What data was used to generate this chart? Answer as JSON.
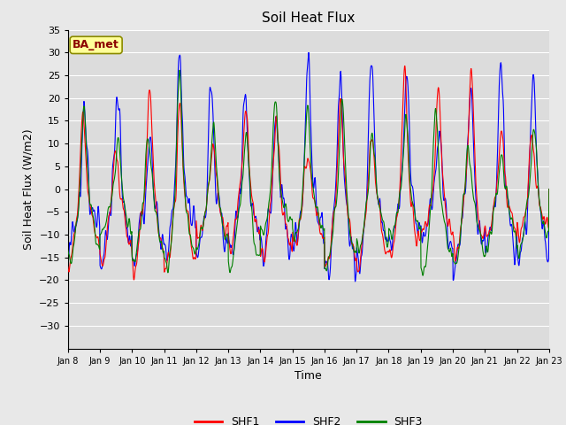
{
  "title": "Soil Heat Flux",
  "xlabel": "Time",
  "ylabel": "Soil Heat Flux (W/m2)",
  "ylim": [
    -35,
    35
  ],
  "yticks": [
    -30,
    -25,
    -20,
    -15,
    -10,
    -5,
    0,
    5,
    10,
    15,
    20,
    25,
    30,
    35
  ],
  "xtick_labels": [
    "Jan 8",
    "Jan 9",
    "Jan 10",
    "Jan 11",
    "Jan 12",
    "Jan 13",
    "Jan 14",
    "Jan 15",
    "Jan 16",
    "Jan 17",
    "Jan 18",
    "Jan 19",
    "Jan 20",
    "Jan 21",
    "Jan 22",
    "Jan 23"
  ],
  "line_colors": [
    "red",
    "blue",
    "green"
  ],
  "line_labels": [
    "SHF1",
    "SHF2",
    "SHF3"
  ],
  "legend_label": "BA_met",
  "legend_label_color": "#8B0000",
  "legend_box_facecolor": "#FFFF99",
  "legend_box_edgecolor": "#8B8B00",
  "fig_facecolor": "#E8E8E8",
  "plot_facecolor": "#DCDCDC",
  "grid_color": "white",
  "title_fontsize": 11,
  "axis_label_fontsize": 9,
  "tick_fontsize": 8,
  "line_width": 0.8
}
